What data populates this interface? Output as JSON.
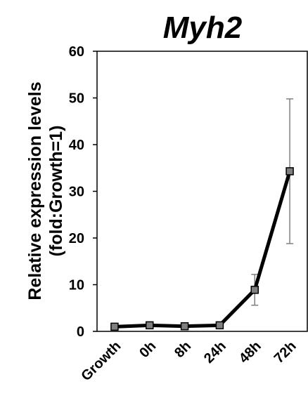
{
  "chart_data": {
    "type": "line",
    "title": "Myh2",
    "ylabel": [
      "Relative expression levels",
      "(fold:Growth=1)"
    ],
    "categories": [
      "Growth",
      "0h",
      "8h",
      "24h",
      "48h",
      "72h"
    ],
    "values": [
      1,
      1.3,
      1.1,
      1.3,
      8.9,
      34.3
    ],
    "errors": [
      0.3,
      0.3,
      0.3,
      0.6,
      3.3,
      15.5
    ],
    "color": "#000000",
    "marker_color": "#7f7f7f",
    "ylim": [
      0,
      60
    ],
    "yticks": [
      0,
      10,
      20,
      30,
      40,
      50,
      60
    ],
    "grid": false
  }
}
